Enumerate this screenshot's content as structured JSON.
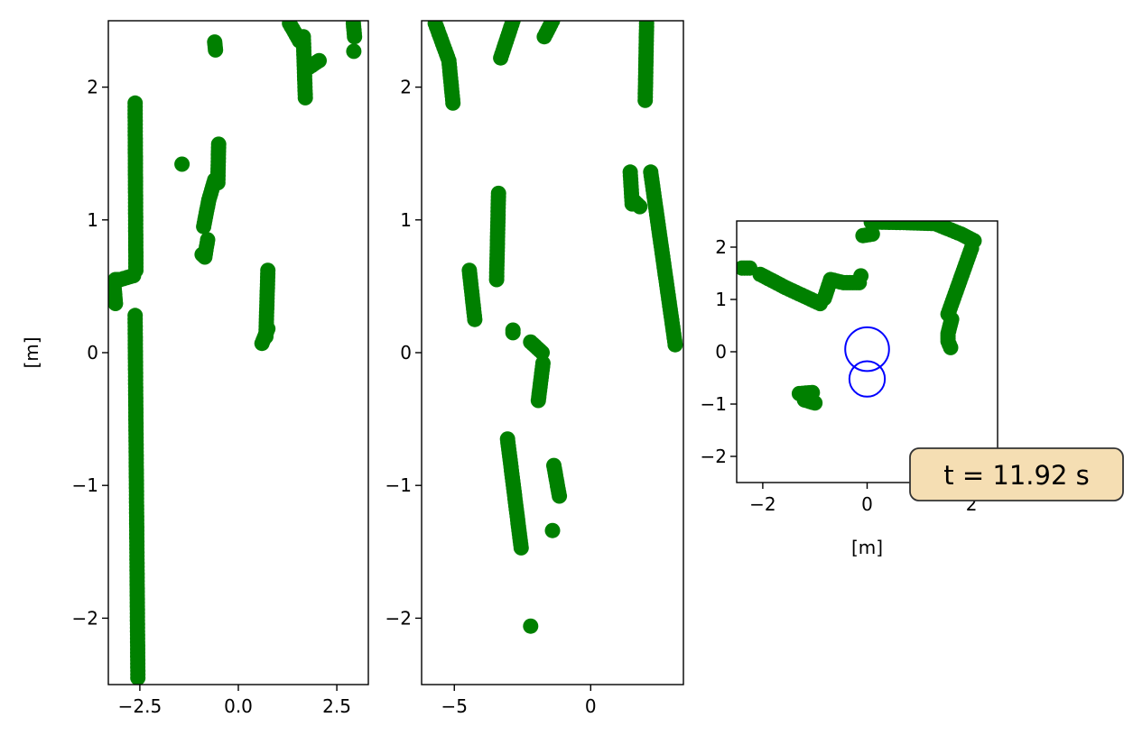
{
  "colors": {
    "scan": "#008000",
    "robot": "#0000ff",
    "annotation_bg": "#f5deb3"
  },
  "annotation": {
    "text": "t = 11.92 s"
  },
  "chart_data": [
    {
      "type": "scatter",
      "xlim": [
        -3.3,
        3.3
      ],
      "ylim": [
        -2.5,
        2.5
      ],
      "xticks": [
        -2.5,
        0.0,
        2.5
      ],
      "xtick_labels": [
        "−2.5",
        "0.0",
        "2.5"
      ],
      "yticks": [
        -2,
        -1,
        0,
        1,
        2
      ],
      "ytick_labels": [
        "−2",
        "−1",
        "0",
        "1",
        "2"
      ],
      "xlabel": "",
      "ylabel": "[m]",
      "segments": [
        [
          [
            -2.62,
            1.88
          ],
          [
            -2.6,
            0.62
          ]
        ],
        [
          [
            -2.66,
            0.58
          ],
          [
            -3.0,
            0.55
          ],
          [
            -3.12,
            0.55
          ]
        ],
        [
          [
            -3.15,
            0.48
          ],
          [
            -3.12,
            0.37
          ]
        ],
        [
          [
            -2.62,
            0.28
          ],
          [
            -2.55,
            -2.45
          ]
        ],
        [
          [
            -1.43,
            1.42
          ]
        ],
        [
          [
            -0.92,
            0.74
          ],
          [
            -0.85,
            0.72
          ],
          [
            -0.78,
            0.85
          ]
        ],
        [
          [
            -0.88,
            0.95
          ],
          [
            -0.75,
            1.15
          ],
          [
            -0.6,
            1.3
          ]
        ],
        [
          [
            -0.52,
            1.28
          ],
          [
            -0.5,
            1.57
          ]
        ],
        [
          [
            -0.6,
            2.34
          ],
          [
            -0.58,
            2.28
          ]
        ],
        [
          [
            0.75,
            0.62
          ],
          [
            0.7,
            0.12
          ]
        ],
        [
          [
            0.6,
            0.07
          ],
          [
            0.75,
            0.18
          ]
        ],
        [
          [
            1.3,
            2.48
          ],
          [
            1.55,
            2.35
          ]
        ],
        [
          [
            1.65,
            2.38
          ],
          [
            1.7,
            1.92
          ]
        ],
        [
          [
            1.8,
            2.15
          ],
          [
            2.05,
            2.2
          ]
        ],
        [
          [
            2.92,
            2.48
          ],
          [
            2.95,
            2.38
          ]
        ],
        [
          [
            2.93,
            2.27
          ]
        ]
      ]
    },
    {
      "type": "scatter",
      "xlim": [
        -6.2,
        3.4
      ],
      "ylim": [
        -2.5,
        2.5
      ],
      "xticks": [
        -5,
        0
      ],
      "xtick_labels": [
        "−5",
        "0"
      ],
      "yticks": [
        -2,
        -1,
        0,
        1,
        2
      ],
      "ytick_labels": [
        "−2",
        "−1",
        "0",
        "1",
        "2"
      ],
      "xlabel": "",
      "ylabel": "",
      "segments": [
        [
          [
            -5.7,
            2.48
          ],
          [
            -5.2,
            2.2
          ],
          [
            -5.05,
            1.88
          ]
        ],
        [
          [
            -4.45,
            0.62
          ],
          [
            -4.25,
            0.25
          ]
        ],
        [
          [
            -3.38,
            1.2
          ],
          [
            -3.45,
            0.55
          ]
        ],
        [
          [
            -3.3,
            2.22
          ],
          [
            -2.85,
            2.5
          ]
        ],
        [
          [
            -1.7,
            2.38
          ],
          [
            -1.4,
            2.5
          ]
        ],
        [
          [
            -2.85,
            0.17
          ],
          [
            -2.85,
            0.15
          ]
        ],
        [
          [
            -2.2,
            0.08
          ],
          [
            -1.78,
            0.0
          ]
        ],
        [
          [
            -1.75,
            -0.08
          ],
          [
            -1.92,
            -0.36
          ]
        ],
        [
          [
            -3.05,
            -0.65
          ],
          [
            -2.55,
            -1.47
          ]
        ],
        [
          [
            -1.35,
            -0.85
          ],
          [
            -1.15,
            -1.08
          ]
        ],
        [
          [
            -1.4,
            -1.34
          ]
        ],
        [
          [
            -2.2,
            -2.06
          ]
        ],
        [
          [
            2.05,
            2.48
          ],
          [
            2.0,
            1.9
          ]
        ],
        [
          [
            1.45,
            1.36
          ],
          [
            1.52,
            1.12
          ]
        ],
        [
          [
            1.55,
            1.15
          ],
          [
            1.8,
            1.1
          ]
        ],
        [
          [
            2.2,
            1.36
          ],
          [
            3.1,
            0.06
          ]
        ]
      ]
    },
    {
      "type": "scatter",
      "xlim": [
        -2.5,
        2.5
      ],
      "ylim": [
        -2.5,
        2.5
      ],
      "xticks": [
        -2,
        0,
        2
      ],
      "xtick_labels": [
        "−2",
        "0",
        "2"
      ],
      "yticks": [
        -2,
        -1,
        0,
        1,
        2
      ],
      "ytick_labels": [
        "−2",
        "−1",
        "0",
        "1",
        "2"
      ],
      "xlabel": "[m]",
      "ylabel": "",
      "segments": [
        [
          [
            -2.4,
            1.6
          ],
          [
            -2.25,
            1.6
          ]
        ],
        [
          [
            -2.05,
            1.48
          ],
          [
            -1.55,
            1.22
          ],
          [
            -0.9,
            0.92
          ]
        ],
        [
          [
            -0.82,
            1.02
          ],
          [
            -0.7,
            1.38
          ],
          [
            -0.45,
            1.32
          ],
          [
            -0.15,
            1.32
          ]
        ],
        [
          [
            -0.12,
            1.45
          ]
        ],
        [
          [
            -0.08,
            2.22
          ],
          [
            0.1,
            2.25
          ]
        ],
        [
          [
            0.08,
            2.48
          ],
          [
            0.7,
            2.47
          ],
          [
            1.3,
            2.45
          ],
          [
            1.8,
            2.25
          ],
          [
            2.05,
            2.12
          ]
        ],
        [
          [
            2.0,
            1.98
          ],
          [
            1.55,
            0.72
          ]
        ],
        [
          [
            1.62,
            0.62
          ],
          [
            1.55,
            0.35
          ],
          [
            1.55,
            0.2
          ],
          [
            1.6,
            0.08
          ]
        ],
        [
          [
            -1.3,
            -0.8
          ],
          [
            -1.05,
            -0.78
          ]
        ],
        [
          [
            -1.2,
            -0.92
          ],
          [
            -1.0,
            -0.98
          ]
        ]
      ],
      "circles": [
        {
          "x": 0.0,
          "y": 0.05,
          "r": 0.42
        },
        {
          "x": 0.0,
          "y": -0.52,
          "r": 0.34
        }
      ]
    }
  ]
}
